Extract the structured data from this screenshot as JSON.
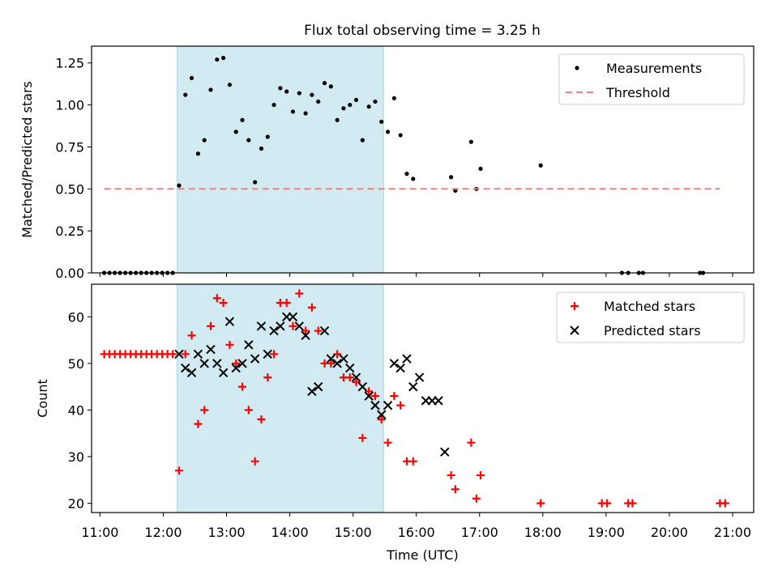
{
  "title": "Flux total observing time = 3.25 h",
  "colors": {
    "measurement": "#000000",
    "threshold": "#f08080",
    "matched": "#ff0000",
    "predicted": "#000000",
    "span": "#add8e6"
  },
  "chart_data": [
    {
      "type": "scatter",
      "ylabel": "Matched/Predicted stars",
      "xlabel": "",
      "xlim": [
        "10:52",
        "21:20"
      ],
      "ylim": [
        0,
        1.35
      ],
      "yticks": [
        "0.00",
        "0.25",
        "0.50",
        "0.75",
        "1.00",
        "1.25"
      ],
      "ytick_values": [
        0,
        0.25,
        0.5,
        0.75,
        1.0,
        1.25
      ],
      "span": [
        "12:13",
        "15:29"
      ],
      "legend_position": "top-right",
      "series": [
        {
          "name": "Measurements",
          "x": [
            "11:04",
            "11:09",
            "11:14",
            "11:19",
            "11:24",
            "11:29",
            "11:34",
            "11:39",
            "11:44",
            "11:49",
            "11:54",
            "11:59",
            "12:04",
            "12:09",
            "12:15",
            "12:21",
            "12:27",
            "12:33",
            "12:39",
            "12:45",
            "12:51",
            "12:57",
            "13:03",
            "13:09",
            "13:15",
            "13:21",
            "13:27",
            "13:33",
            "13:39",
            "13:45",
            "13:51",
            "13:57",
            "14:03",
            "14:09",
            "14:15",
            "14:21",
            "14:27",
            "14:33",
            "14:39",
            "14:45",
            "14:51",
            "14:57",
            "15:03",
            "15:09",
            "15:15",
            "15:21",
            "15:27",
            "15:33",
            "15:39",
            "15:45",
            "15:51",
            "15:57",
            "16:33",
            "16:37",
            "16:52",
            "16:57",
            "17:01",
            "17:58",
            "19:15",
            "19:21",
            "19:31",
            "19:35",
            "20:29",
            "20:32"
          ],
          "y": [
            0,
            0,
            0,
            0,
            0,
            0,
            0,
            0,
            0,
            0,
            0,
            0,
            0,
            0,
            0.52,
            1.06,
            1.16,
            0.71,
            0.79,
            1.09,
            1.27,
            1.28,
            1.12,
            0.84,
            0.91,
            0.79,
            0.54,
            0.74,
            0.81,
            1.0,
            1.1,
            1.08,
            0.96,
            1.07,
            0.95,
            1.06,
            1.02,
            1.13,
            1.11,
            0.91,
            0.98,
            1.0,
            1.03,
            0.79,
            0.99,
            1.02,
            0.9,
            0.84,
            1.04,
            0.82,
            0.59,
            0.56,
            0.57,
            0.49,
            0.78,
            0.5,
            0.62,
            0.64,
            0,
            0,
            0,
            0,
            0,
            0
          ]
        },
        {
          "name": "Threshold",
          "x": [
            "11:04",
            "20:48"
          ],
          "y": [
            0.5,
            0.5
          ]
        }
      ]
    },
    {
      "type": "scatter",
      "ylabel": "Count",
      "xlabel": "Time (UTC)",
      "xlim": [
        "10:52",
        "21:20"
      ],
      "ylim": [
        18,
        67
      ],
      "yticks": [
        "20",
        "30",
        "40",
        "50",
        "60"
      ],
      "ytick_values": [
        20,
        30,
        40,
        50,
        60
      ],
      "xticks": [
        "11:00",
        "12:00",
        "13:00",
        "14:00",
        "15:00",
        "16:00",
        "17:00",
        "18:00",
        "19:00",
        "20:00",
        "21:00"
      ],
      "span": [
        "12:13",
        "15:29"
      ],
      "legend_position": "top-right",
      "series": [
        {
          "name": "Matched stars",
          "x": [
            "11:04",
            "11:09",
            "11:14",
            "11:19",
            "11:24",
            "11:29",
            "11:34",
            "11:39",
            "11:44",
            "11:49",
            "11:54",
            "11:59",
            "12:04",
            "12:09",
            "12:15",
            "12:21",
            "12:27",
            "12:33",
            "12:39",
            "12:45",
            "12:51",
            "12:57",
            "13:03",
            "13:09",
            "13:15",
            "13:21",
            "13:27",
            "13:33",
            "13:39",
            "13:45",
            "13:51",
            "13:57",
            "14:03",
            "14:09",
            "14:15",
            "14:21",
            "14:27",
            "14:33",
            "14:39",
            "14:45",
            "14:51",
            "14:57",
            "15:03",
            "15:09",
            "15:15",
            "15:21",
            "15:27",
            "15:33",
            "15:39",
            "15:45",
            "15:51",
            "15:57",
            "16:33",
            "16:37",
            "16:52",
            "16:57",
            "17:01",
            "17:58",
            "18:56",
            "19:01",
            "19:21",
            "19:25",
            "20:48",
            "20:53"
          ],
          "y": [
            52,
            52,
            52,
            52,
            52,
            52,
            52,
            52,
            52,
            52,
            52,
            52,
            52,
            52,
            27,
            52,
            56,
            37,
            40,
            58,
            64,
            63,
            54,
            50,
            45,
            40,
            29,
            38,
            47,
            52,
            63,
            63,
            58,
            65,
            57,
            62,
            57,
            50,
            50,
            52,
            47,
            47,
            46,
            34,
            44,
            43,
            38,
            33,
            43,
            41,
            29,
            29,
            26,
            23,
            33,
            21,
            26,
            20,
            20,
            20,
            20,
            20,
            20,
            20
          ]
        },
        {
          "name": "Predicted stars",
          "x": [
            "12:15",
            "12:21",
            "12:27",
            "12:33",
            "12:39",
            "12:45",
            "12:51",
            "12:57",
            "13:03",
            "13:09",
            "13:15",
            "13:21",
            "13:27",
            "13:33",
            "13:39",
            "13:45",
            "13:51",
            "13:57",
            "14:03",
            "14:09",
            "14:15",
            "14:21",
            "14:27",
            "14:33",
            "14:39",
            "14:45",
            "14:51",
            "14:57",
            "15:03",
            "15:09",
            "15:15",
            "15:21",
            "15:27",
            "15:33",
            "15:39",
            "15:45",
            "15:51",
            "15:57",
            "16:03",
            "16:09",
            "16:15",
            "16:21",
            "16:27"
          ],
          "y": [
            52,
            49,
            48,
            52,
            50,
            53,
            50,
            48,
            59,
            49,
            50,
            54,
            51,
            58,
            52,
            57,
            58,
            60,
            60,
            58,
            56,
            44,
            45,
            57,
            51,
            50,
            51,
            49,
            47,
            45,
            43,
            41,
            39,
            41,
            50,
            49,
            51,
            45,
            47,
            42,
            42,
            42,
            31
          ]
        }
      ]
    }
  ]
}
